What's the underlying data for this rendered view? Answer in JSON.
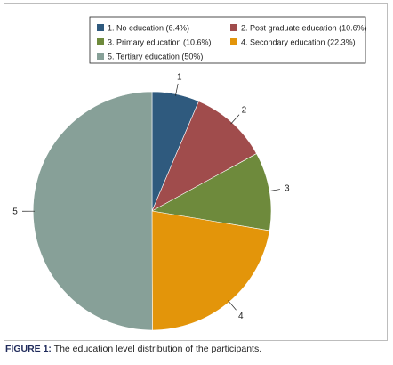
{
  "chart_data": {
    "type": "pie",
    "categories": [
      "1",
      "2",
      "3",
      "4",
      "5"
    ],
    "values": [
      6.4,
      10.6,
      10.6,
      22.3,
      50
    ],
    "legend": [
      "1. No education (6.4%)",
      "2. Post graduate education (10.6%)",
      "3. Primary education (10.6%)",
      "4. Secondary education (22.3%)",
      "5. Tertiary education (50%)"
    ],
    "colors": [
      "#2f5a7e",
      "#a04c4c",
      "#6e8a3c",
      "#e3950a",
      "#87a098"
    ],
    "legend_position": "top"
  },
  "caption": {
    "figure_label": "FIGURE 1:",
    "text": " The education level distribution of the participants."
  }
}
